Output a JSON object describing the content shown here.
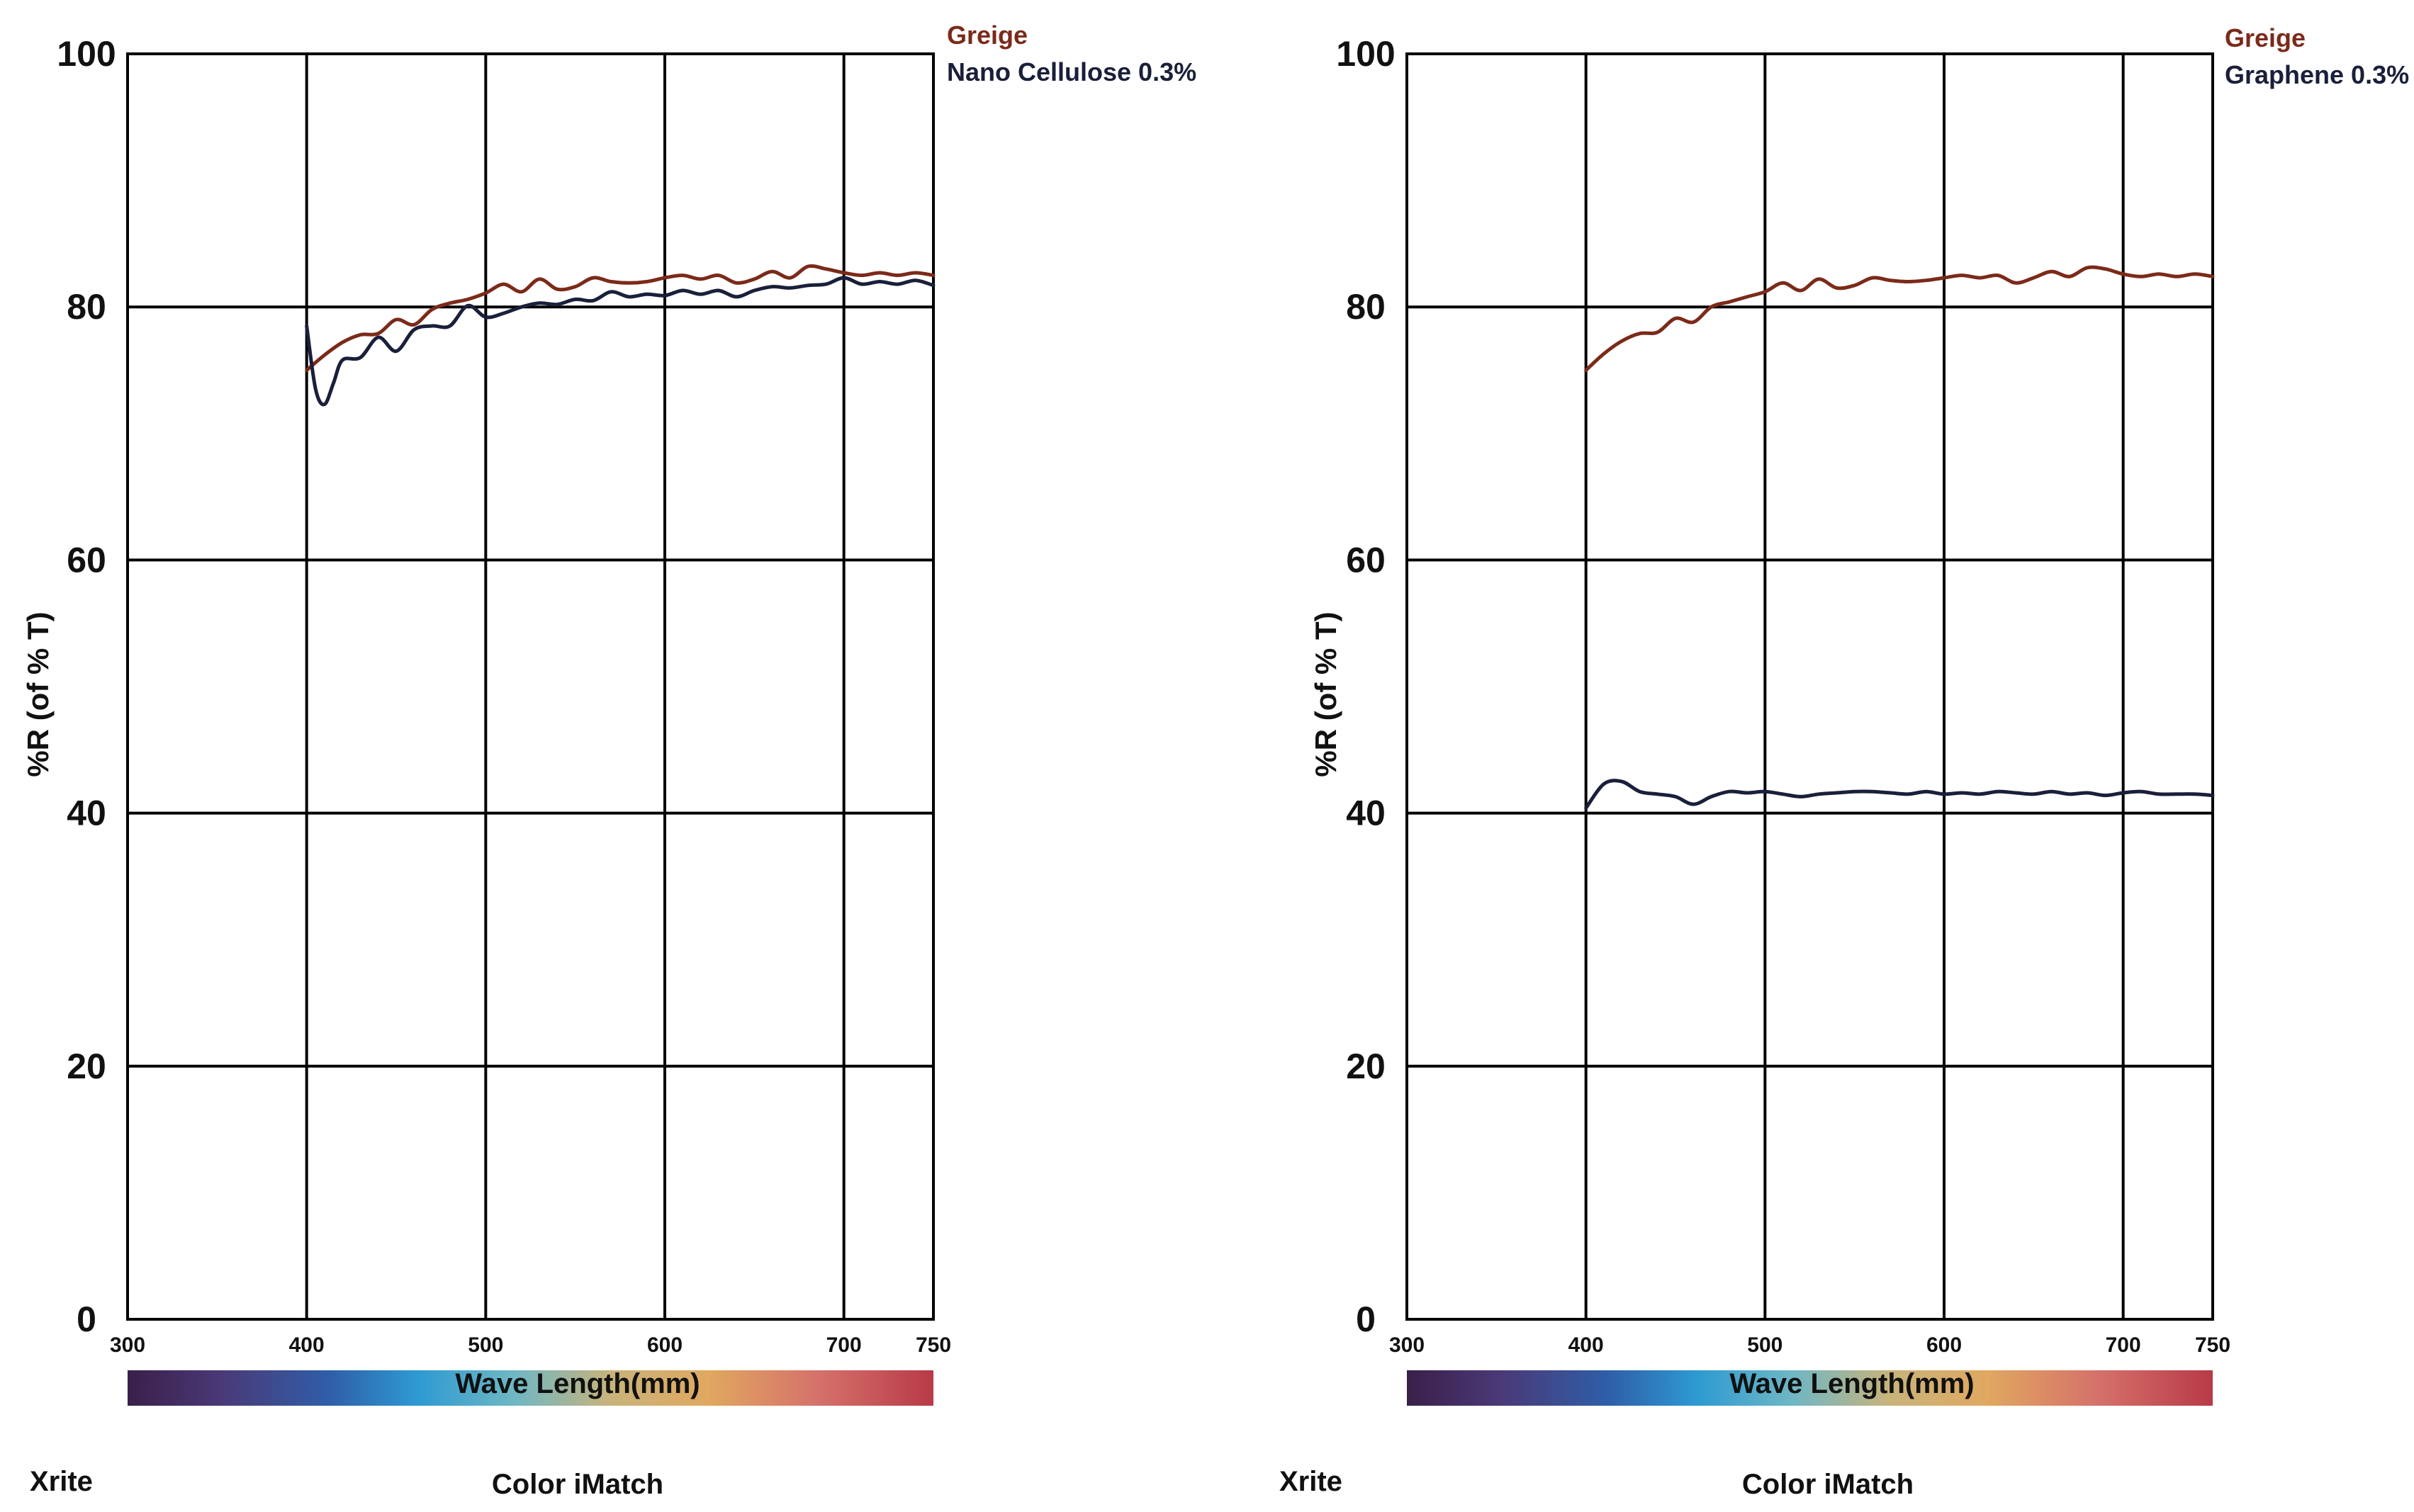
{
  "chart_data": [
    {
      "type": "line",
      "ylabel": "%R (of % T)",
      "xlabel": "Wave Length(mm)",
      "ylim": [
        0,
        100
      ],
      "xlim": [
        300,
        750
      ],
      "y_ticks": [
        "0",
        "20",
        "40",
        "60",
        "80",
        "100"
      ],
      "x_ticks": [
        "300",
        "400",
        "500",
        "600",
        "700",
        "750"
      ],
      "legend": [
        "Greige",
        "Nano Cellulose 0.3%"
      ],
      "footer_left": "Xrite",
      "footer_center": "Color iMatch",
      "series": [
        {
          "name": "Greige",
          "color": "#7b2a1a",
          "x": [
            400,
            410,
            420,
            430,
            440,
            450,
            460,
            470,
            480,
            490,
            500,
            510,
            520,
            530,
            540,
            550,
            560,
            570,
            580,
            590,
            600,
            610,
            620,
            630,
            640,
            650,
            660,
            670,
            680,
            690,
            700,
            710,
            720,
            730,
            740,
            750
          ],
          "y": [
            75,
            76.2,
            77.2,
            77.8,
            77.9,
            79,
            78.6,
            79.8,
            80.3,
            80.6,
            81.1,
            81.8,
            81.2,
            82.2,
            81.4,
            81.6,
            82.3,
            82,
            81.9,
            82,
            82.3,
            82.5,
            82.2,
            82.5,
            81.9,
            82.2,
            82.8,
            82.3,
            83.2,
            83,
            82.7,
            82.5,
            82.7,
            82.5,
            82.7,
            82.5
          ]
        },
        {
          "name": "Nano Cellulose 0.3%",
          "color": "#1a1f3a",
          "x": [
            400,
            405,
            410,
            415,
            420,
            430,
            440,
            450,
            460,
            470,
            480,
            490,
            500,
            510,
            520,
            530,
            540,
            550,
            560,
            570,
            580,
            590,
            600,
            610,
            620,
            630,
            640,
            650,
            660,
            670,
            680,
            690,
            700,
            710,
            720,
            730,
            740,
            750
          ],
          "y": [
            78.5,
            73.5,
            72.3,
            74,
            75.8,
            76,
            77.6,
            76.5,
            78.2,
            78.5,
            78.5,
            80.1,
            79.2,
            79.5,
            80,
            80.3,
            80.2,
            80.6,
            80.5,
            81.2,
            80.8,
            81,
            80.9,
            81.3,
            81,
            81.3,
            80.8,
            81.3,
            81.6,
            81.5,
            81.7,
            81.8,
            82.3,
            81.8,
            82,
            81.8,
            82.1,
            81.7
          ]
        }
      ]
    },
    {
      "type": "line",
      "ylabel": "%R (of % T)",
      "xlabel": "Wave Length(mm)",
      "ylim": [
        0,
        100
      ],
      "xlim": [
        300,
        750
      ],
      "y_ticks": [
        "0",
        "20",
        "40",
        "60",
        "80",
        "100"
      ],
      "x_ticks": [
        "300",
        "400",
        "500",
        "600",
        "700",
        "750"
      ],
      "legend": [
        "Greige",
        "Graphene 0.3%"
      ],
      "footer_left": "Xrite",
      "footer_center": "Color iMatch",
      "series": [
        {
          "name": "Greige",
          "color": "#7b2a1a",
          "x": [
            400,
            410,
            420,
            430,
            440,
            450,
            460,
            470,
            480,
            490,
            500,
            510,
            520,
            530,
            540,
            550,
            560,
            570,
            580,
            590,
            600,
            610,
            620,
            630,
            640,
            650,
            660,
            670,
            680,
            690,
            700,
            710,
            720,
            730,
            740,
            750
          ],
          "y": [
            75,
            76.3,
            77.3,
            77.9,
            78,
            79.1,
            78.8,
            80,
            80.4,
            80.8,
            81.2,
            81.9,
            81.3,
            82.2,
            81.5,
            81.7,
            82.3,
            82.1,
            82,
            82.1,
            82.3,
            82.5,
            82.3,
            82.5,
            81.9,
            82.3,
            82.8,
            82.4,
            83.1,
            83,
            82.6,
            82.4,
            82.6,
            82.4,
            82.6,
            82.4
          ]
        },
        {
          "name": "Graphene 0.3%",
          "color": "#1a1f3a",
          "x": [
            400,
            410,
            420,
            430,
            440,
            450,
            460,
            470,
            480,
            490,
            500,
            510,
            520,
            530,
            540,
            550,
            560,
            570,
            580,
            590,
            600,
            610,
            620,
            630,
            640,
            650,
            660,
            670,
            680,
            690,
            700,
            710,
            720,
            730,
            740,
            750
          ],
          "y": [
            40.4,
            42.3,
            42.5,
            41.7,
            41.5,
            41.3,
            40.7,
            41.3,
            41.7,
            41.6,
            41.7,
            41.5,
            41.3,
            41.5,
            41.6,
            41.7,
            41.7,
            41.6,
            41.5,
            41.7,
            41.5,
            41.6,
            41.5,
            41.7,
            41.6,
            41.5,
            41.7,
            41.5,
            41.6,
            41.4,
            41.6,
            41.7,
            41.5,
            41.5,
            41.5,
            41.4
          ]
        }
      ]
    }
  ]
}
